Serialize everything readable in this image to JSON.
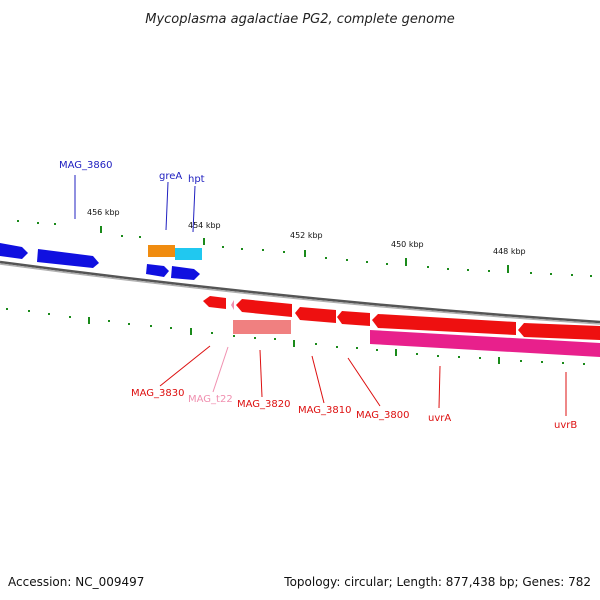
{
  "title": "Mycoplasma agalactiae PG2, complete genome",
  "footer": {
    "accession": "Accession: NC_009497",
    "summary": "Topology: circular; Length: 877,438 bp; Genes: 782"
  },
  "ruler_labels": [
    "456 kbp",
    "454 kbp",
    "452 kbp",
    "450 kbp",
    "448 kbp"
  ],
  "gene_labels": {
    "mag3860": "MAG_3860",
    "grea": "greA",
    "hpt": "hpt",
    "mag3830": "MAG_3830",
    "magt22": "MAG_t22",
    "mag3820": "MAG_3820",
    "mag3810": "MAG_3810",
    "mag3800": "MAG_3800",
    "uvra": "uvrA",
    "uvrb": "uvrB"
  },
  "colors": {
    "forward_gene": "#1010e0",
    "forward_label": "#2020c0",
    "reverse_gene": "#ee1010",
    "reverse_label": "#dd1010",
    "trna": "#f090b0",
    "pseudo": "#f08080",
    "magenta_track": "#e8208c",
    "grea_orange": "#f08c10",
    "hpt_cyan": "#20c8f0",
    "backbone": "#888888",
    "tick_green": "#1a8a1a"
  }
}
